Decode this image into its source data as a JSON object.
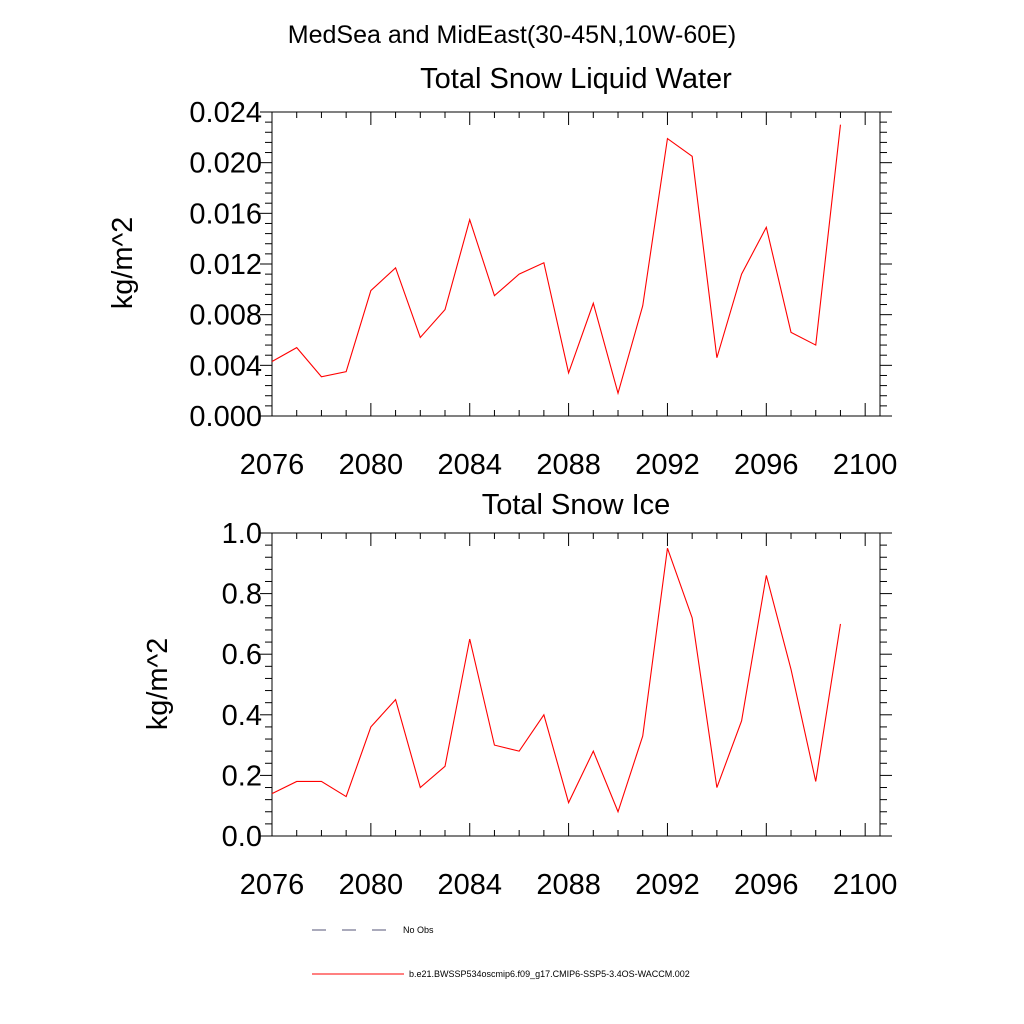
{
  "suptitle": "MedSea and MidEast(30-45N,10W-60E)",
  "colors": {
    "series": "#ff0000",
    "axis": "#000000",
    "obs": "#555577"
  },
  "chart_data": [
    {
      "type": "line",
      "title": "Total Snow Liquid Water",
      "ylabel": "kg/m^2",
      "xlabel": "",
      "xlim": [
        2076,
        2100.6
      ],
      "ylim": [
        0,
        0.024
      ],
      "xticks": [
        2076,
        2080,
        2084,
        2088,
        2092,
        2096,
        2100
      ],
      "xtick_labels": [
        "2076",
        "2080",
        "2084",
        "2088",
        "2092",
        "2096",
        "2100"
      ],
      "yticks": [
        0,
        0.004,
        0.008,
        0.012,
        0.016,
        0.02,
        0.024
      ],
      "ytick_labels": [
        "0.000",
        "0.004",
        "0.008",
        "0.012",
        "0.016",
        "0.020",
        "0.024"
      ],
      "grid": false,
      "x": [
        2076,
        2077,
        2078,
        2079,
        2080,
        2081,
        2082,
        2083,
        2084,
        2085,
        2086,
        2087,
        2088,
        2089,
        2090,
        2091,
        2092,
        2093,
        2094,
        2095,
        2096,
        2097,
        2098,
        2099
      ],
      "series": [
        {
          "name": "b.e21.BWSSP534oscmip6.f09_g17.CMIP6-SSP5-3.4OS-WACCM.002",
          "values": [
            0.0043,
            0.0054,
            0.0031,
            0.0035,
            0.0099,
            0.0117,
            0.0062,
            0.0084,
            0.0155,
            0.0095,
            0.0112,
            0.0121,
            0.0034,
            0.0089,
            0.0018,
            0.0087,
            0.0219,
            0.0205,
            0.0046,
            0.0112,
            0.0149,
            0.0066,
            0.0056,
            0.023
          ]
        }
      ]
    },
    {
      "type": "line",
      "title": "Total Snow Ice",
      "ylabel": "kg/m^2",
      "xlabel": "",
      "xlim": [
        2076,
        2100.6
      ],
      "ylim": [
        0,
        1.0
      ],
      "xticks": [
        2076,
        2080,
        2084,
        2088,
        2092,
        2096,
        2100
      ],
      "xtick_labels": [
        "2076",
        "2080",
        "2084",
        "2088",
        "2092",
        "2096",
        "2100"
      ],
      "yticks": [
        0,
        0.2,
        0.4,
        0.6,
        0.8,
        1.0
      ],
      "ytick_labels": [
        "0.0",
        "0.2",
        "0.4",
        "0.6",
        "0.8",
        "1.0"
      ],
      "grid": false,
      "x": [
        2076,
        2077,
        2078,
        2079,
        2080,
        2081,
        2082,
        2083,
        2084,
        2085,
        2086,
        2087,
        2088,
        2089,
        2090,
        2091,
        2092,
        2093,
        2094,
        2095,
        2096,
        2097,
        2098,
        2099
      ],
      "series": [
        {
          "name": "b.e21.BWSSP534oscmip6.f09_g17.CMIP6-SSP5-3.4OS-WACCM.002",
          "values": [
            0.14,
            0.18,
            0.18,
            0.13,
            0.36,
            0.45,
            0.16,
            0.23,
            0.65,
            0.3,
            0.28,
            0.4,
            0.11,
            0.28,
            0.08,
            0.33,
            0.95,
            0.72,
            0.16,
            0.38,
            0.86,
            0.55,
            0.18,
            0.7
          ]
        }
      ]
    }
  ],
  "legend": {
    "placement": "bottom",
    "items": [
      {
        "label": "No Obs",
        "style": "dashed"
      },
      {
        "label": "b.e21.BWSSP534oscmip6.f09_g17.CMIP6-SSP5-3.4OS-WACCM.002",
        "style": "solid"
      }
    ]
  }
}
